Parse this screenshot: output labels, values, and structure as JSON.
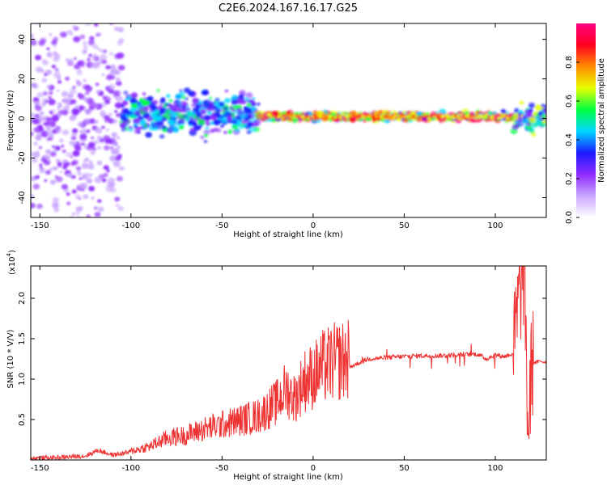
{
  "title": "C2E6.2024.167.16.17.G25",
  "chart_data": [
    {
      "type": "heatmap",
      "xlabel": "Height of straight line (km)",
      "ylabel": "Frequency (Hz)",
      "xlim": [
        -155,
        128
      ],
      "ylim": [
        -50,
        48
      ],
      "xticks": [
        -150,
        -100,
        -50,
        0,
        50,
        100
      ],
      "yticks": [
        -40,
        -20,
        0,
        20,
        40
      ],
      "colorbar": {
        "label": "Normalized spectral amplitude",
        "range": [
          0.0,
          1.0
        ],
        "ticks": [
          0.0,
          0.2,
          0.4,
          0.6,
          0.8
        ]
      },
      "colormap": [
        "#ffffff",
        "#c9a6ff",
        "#8f2bff",
        "#1a1aff",
        "#00d8ff",
        "#00ff40",
        "#e8ff00",
        "#ff8a00",
        "#ff0020",
        "#ff0080"
      ],
      "features": [
        {
          "x_range": [
            -155,
            -105
          ],
          "freq_center": 0,
          "freq_spread": 50,
          "amplitude": 0.2
        },
        {
          "x_range": [
            -105,
            -30
          ],
          "freq_center": 3,
          "freq_spread": 8,
          "amplitude": 0.45
        },
        {
          "x_range": [
            -30,
            110
          ],
          "freq_center": 1,
          "freq_spread": 1.5,
          "amplitude": 0.9
        },
        {
          "x_range": [
            110,
            128
          ],
          "freq_center": 0,
          "freq_spread": 5,
          "amplitude": 0.6
        }
      ]
    },
    {
      "type": "line",
      "xlabel": "Height of straight line (km)",
      "ylabel": "SNR (10 * V/V)",
      "yscale_label": "(x10",
      "yscale_exp": "4",
      "line_color": "#ee3333",
      "xlim": [
        -155,
        128
      ],
      "ylim": [
        0,
        24000
      ],
      "xticks": [
        -150,
        -100,
        -50,
        0,
        50,
        100
      ],
      "yticks": [
        5000,
        10000,
        15000,
        20000
      ],
      "ytick_labels": [
        "0.5",
        "1.0",
        "1.5",
        "2.0"
      ],
      "x": [
        -155,
        -140,
        -125,
        -118,
        -110,
        -100,
        -90,
        -80,
        -70,
        -60,
        -50,
        -40,
        -30,
        -20,
        -15,
        -10,
        -5,
        0,
        5,
        10,
        20,
        30,
        50,
        60,
        70,
        80,
        90,
        95,
        100,
        105,
        110,
        113,
        116,
        118,
        120,
        125,
        128
      ],
      "values": [
        200,
        300,
        500,
        1200,
        600,
        1000,
        1500,
        2500,
        2800,
        3500,
        4000,
        4500,
        5000,
        6500,
        8000,
        7000,
        9000,
        9500,
        10500,
        11000,
        11500,
        12500,
        12800,
        12900,
        12900,
        13000,
        13100,
        12500,
        13000,
        12800,
        13200,
        20000,
        23500,
        3000,
        12000,
        12200,
        12100
      ]
    }
  ]
}
